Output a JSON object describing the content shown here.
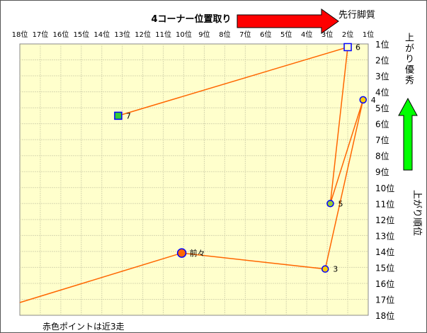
{
  "chart_data": {
    "type": "scatter",
    "title": "4コーナー位置取り",
    "x_axis": {
      "label": "4コーナー位置取り",
      "range": [
        18,
        1
      ],
      "reversed": true,
      "tick_labels": [
        "18位",
        "17位",
        "16位",
        "15位",
        "14位",
        "13位",
        "12位",
        "11位",
        "10位",
        "9位",
        "8位",
        "7位",
        "6位",
        "5位",
        "4位",
        "3位",
        "2位",
        "1位"
      ]
    },
    "y_axis": {
      "label": "上がり順位",
      "range": [
        1,
        18
      ],
      "reversed": true,
      "tick_labels": [
        "1位",
        "2位",
        "3位",
        "4位",
        "5位",
        "6位",
        "7位",
        "8位",
        "9位",
        "10位",
        "11位",
        "12位",
        "13位",
        "14位",
        "15位",
        "16位",
        "17位",
        "18位"
      ]
    },
    "grid": true,
    "annotations": {
      "right_arrow_label": "先行脚質",
      "up_arrow_label": "上がり優秀",
      "footnote": "赤色ポイントは近3走"
    },
    "points": [
      {
        "label": "7",
        "x": 13.2,
        "y": 5.5,
        "marker": "square",
        "fill": "#33cc33"
      },
      {
        "label": "6",
        "x": 2.0,
        "y": 1.2,
        "marker": "square",
        "fill": "#ffffcc"
      },
      {
        "label": "5",
        "x": 2.85,
        "y": 11.0,
        "marker": "circle",
        "fill": "#99cc33"
      },
      {
        "label": "4",
        "x": 1.25,
        "y": 4.5,
        "marker": "circle",
        "fill": "#ffcc00"
      },
      {
        "label": "3",
        "x": 3.1,
        "y": 15.1,
        "marker": "circle",
        "fill": "#ffcc00"
      },
      {
        "label": "前々",
        "x": 10.1,
        "y": 14.1,
        "marker": "circle-large",
        "fill": "#ff6600"
      },
      {
        "label": "",
        "x": 18.0,
        "y": 17.2,
        "marker": "none",
        "fill": ""
      }
    ],
    "colors": {
      "line": "#ff6600",
      "marker_border": "#0000ff",
      "plot_bg": "#ffffcc",
      "grid": "#d8d8b0",
      "red_arrow": "#ff0000",
      "green_arrow": "#00ff00"
    }
  }
}
